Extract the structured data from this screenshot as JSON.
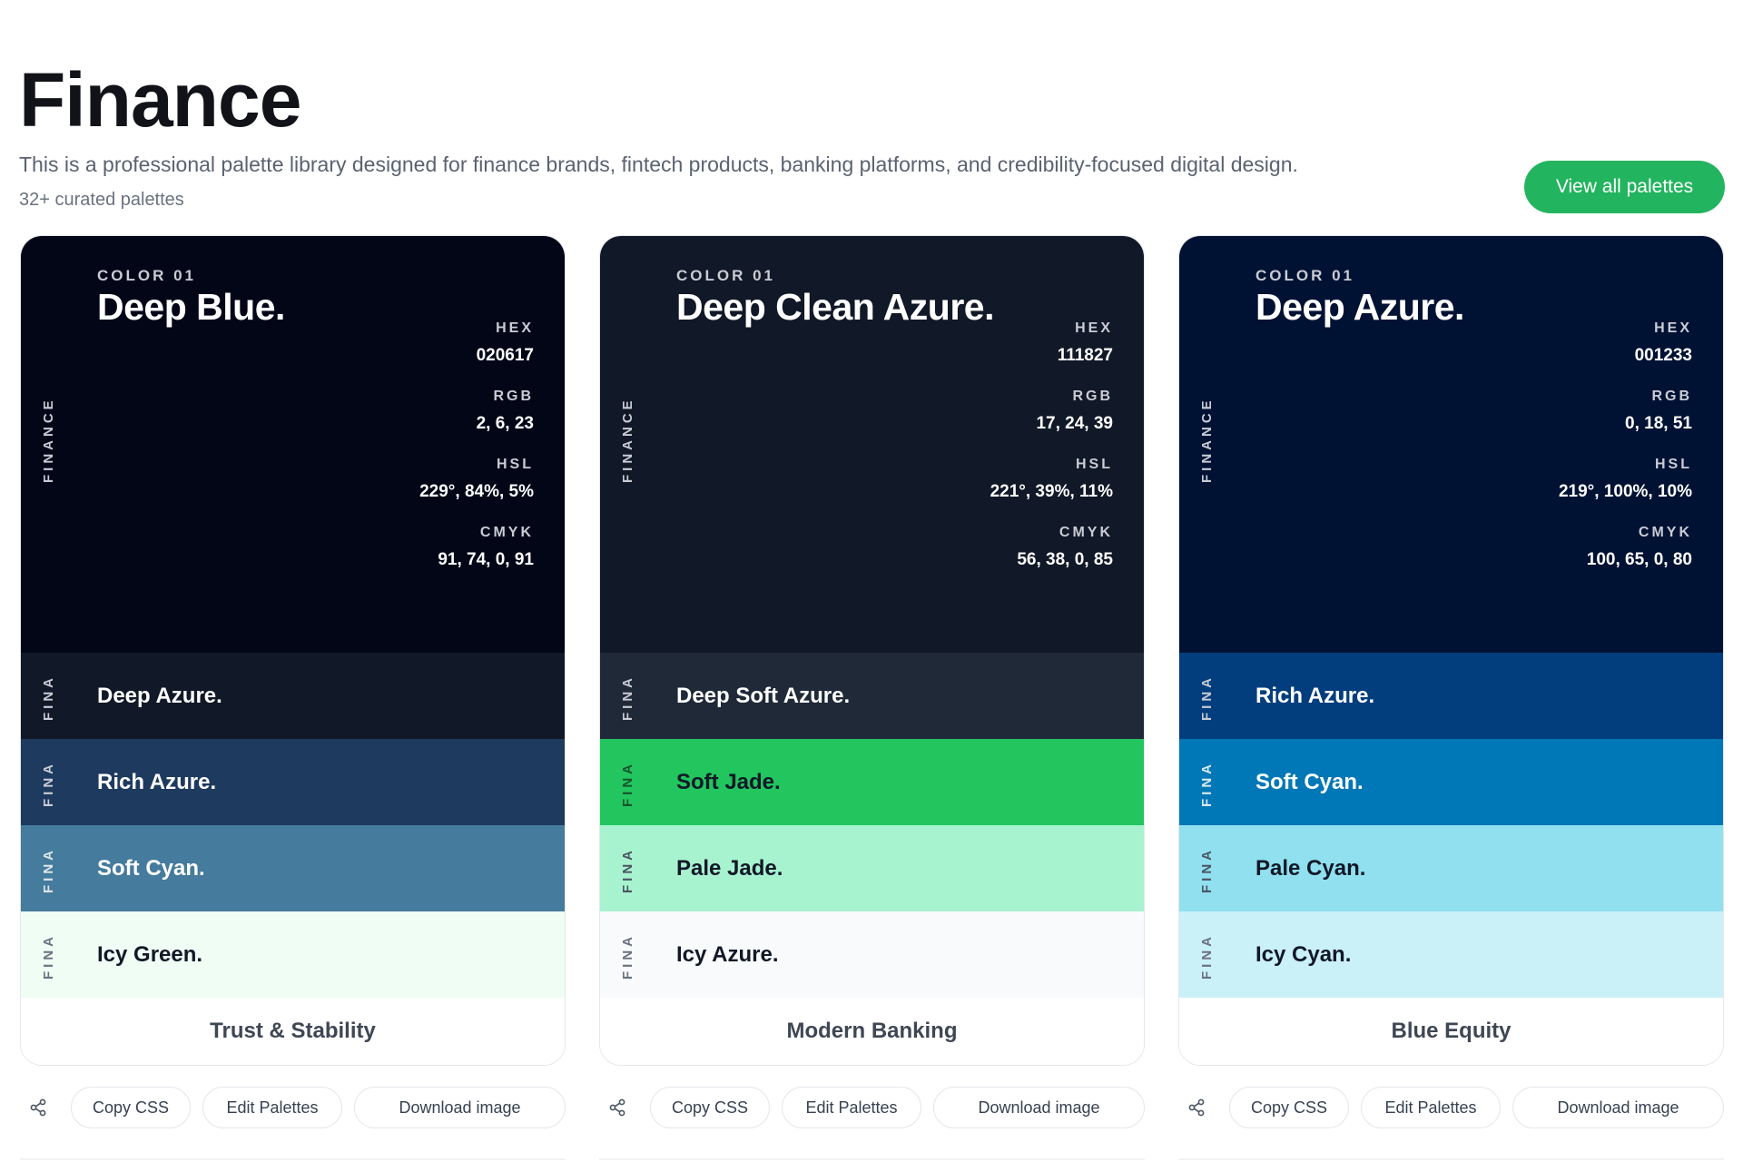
{
  "header": {
    "title": "Finance",
    "description": "This is a professional palette library designed for finance brands, fintech products, banking platforms, and credibility-focused digital design.",
    "count": "32+ curated palettes",
    "view_all_label": "View all palettes"
  },
  "spec_labels": {
    "hex": "HEX",
    "rgb": "RGB",
    "hsl": "HSL",
    "cmyk": "CMYK"
  },
  "actions": {
    "copy": "Copy CSS",
    "edit": "Edit Palettes",
    "download": "Download image",
    "share_icon": "share-icon"
  },
  "cards": [
    {
      "footer": "Trust & Stability",
      "main": {
        "side_label": "FINANCE",
        "color_num": "COLOR 01",
        "name": "Deep Blue.",
        "hex": "020617",
        "rgb": "2, 6, 23",
        "hsl": "229°, 84%, 5%",
        "cmyk": "91, 74, 0, 91",
        "bg": "#020617",
        "fg": "#ffffff",
        "muted": "#c9ccd4"
      },
      "swatches": [
        {
          "side_label": "FINA",
          "name": "Deep Azure.",
          "bg": "#111827",
          "fg": "#ffffff",
          "muted": "#c9ccd4"
        },
        {
          "side_label": "FINA",
          "name": "Rich Azure.",
          "bg": "#1e3a5f",
          "fg": "#ffffff",
          "muted": "#c9ccd4"
        },
        {
          "side_label": "FINA",
          "name": "Soft Cyan.",
          "bg": "#457b9d",
          "fg": "#ffffff",
          "muted": "#dfe6ec"
        },
        {
          "side_label": "FINA",
          "name": "Icy Green.",
          "bg": "#f0fdf4",
          "fg": "#111827",
          "muted": "#6b7280"
        }
      ]
    },
    {
      "footer": "Modern Banking",
      "main": {
        "side_label": "FINANCE",
        "color_num": "COLOR 01",
        "name": "Deep Clean Azure.",
        "hex": "111827",
        "rgb": "17, 24, 39",
        "hsl": "221°, 39%, 11%",
        "cmyk": "56, 38, 0, 85",
        "bg": "#111827",
        "fg": "#ffffff",
        "muted": "#c9ccd4"
      },
      "swatches": [
        {
          "side_label": "FINA",
          "name": "Deep Soft Azure.",
          "bg": "#1f2937",
          "fg": "#ffffff",
          "muted": "#c9ccd4"
        },
        {
          "side_label": "FINA",
          "name": "Soft Jade.",
          "bg": "#22c55e",
          "fg": "#111827",
          "muted": "#14532d"
        },
        {
          "side_label": "FINA",
          "name": "Pale Jade.",
          "bg": "#a7f3d0",
          "fg": "#111827",
          "muted": "#4b5563"
        },
        {
          "side_label": "FINA",
          "name": "Icy Azure.",
          "bg": "#f8fafc",
          "fg": "#111827",
          "muted": "#6b7280"
        }
      ]
    },
    {
      "footer": "Blue Equity",
      "main": {
        "side_label": "FINANCE",
        "color_num": "COLOR 01",
        "name": "Deep Azure.",
        "hex": "001233",
        "rgb": "0, 18, 51",
        "hsl": "219°, 100%, 10%",
        "cmyk": "100, 65, 0, 80",
        "bg": "#001233",
        "fg": "#ffffff",
        "muted": "#c9ccd4"
      },
      "swatches": [
        {
          "side_label": "FINA",
          "name": "Rich Azure.",
          "bg": "#023e7d",
          "fg": "#ffffff",
          "muted": "#c9ccd4"
        },
        {
          "side_label": "FINA",
          "name": "Soft Cyan.",
          "bg": "#0077b6",
          "fg": "#ffffff",
          "muted": "#dbe9f3"
        },
        {
          "side_label": "FINA",
          "name": "Pale Cyan.",
          "bg": "#90e0ef",
          "fg": "#111827",
          "muted": "#4b5563"
        },
        {
          "side_label": "FINA",
          "name": "Icy Cyan.",
          "bg": "#caf0f8",
          "fg": "#111827",
          "muted": "#6b7280"
        }
      ]
    }
  ]
}
